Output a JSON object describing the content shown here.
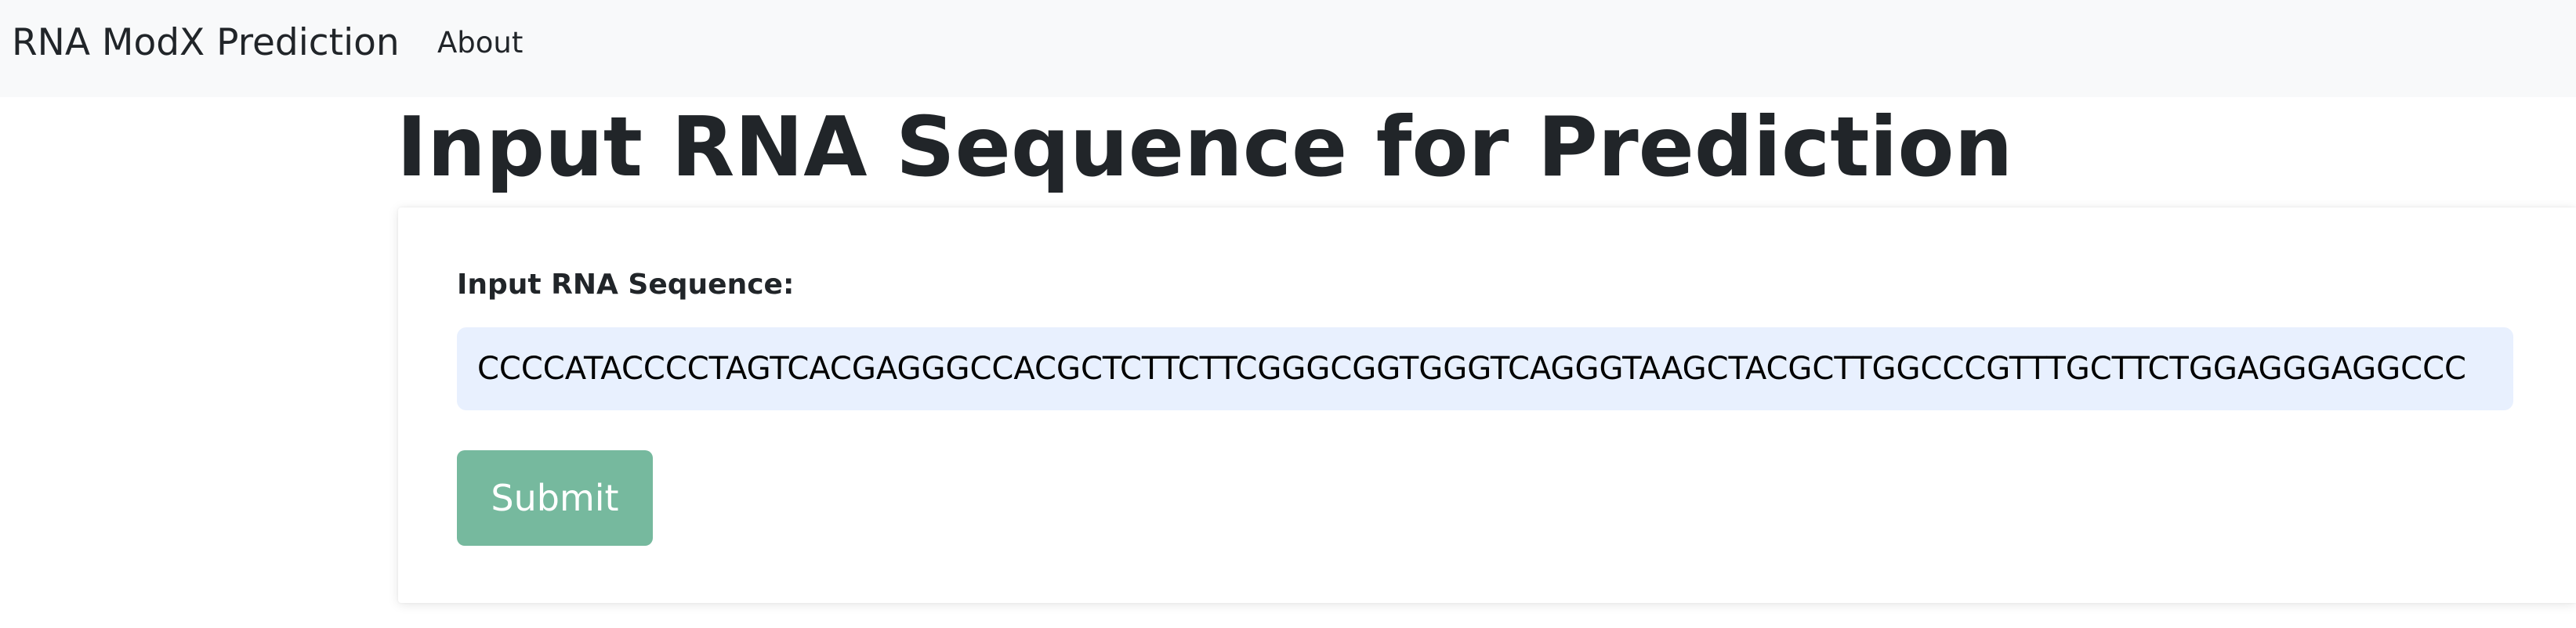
{
  "navbar": {
    "brand": "RNA ModX Prediction",
    "links": [
      {
        "label": "About"
      }
    ]
  },
  "main": {
    "title": "Input RNA Sequence for Prediction",
    "form": {
      "sequence_label": "Input RNA Sequence:",
      "sequence_value": "CCCCATACCCCTAGTCACGAGGGCCACGCTCTTCTTCGGGCGGTGGGTCAGGGTAAGCTACGCTTGGCCCGTTTGCTTCTGGAGGGAGGCCC",
      "submit_label": "Submit"
    }
  },
  "colors": {
    "navbar_bg": "#f8f9fa",
    "input_bg": "#e8f0fe",
    "submit_bg": "#76b99e",
    "text": "#212529"
  }
}
